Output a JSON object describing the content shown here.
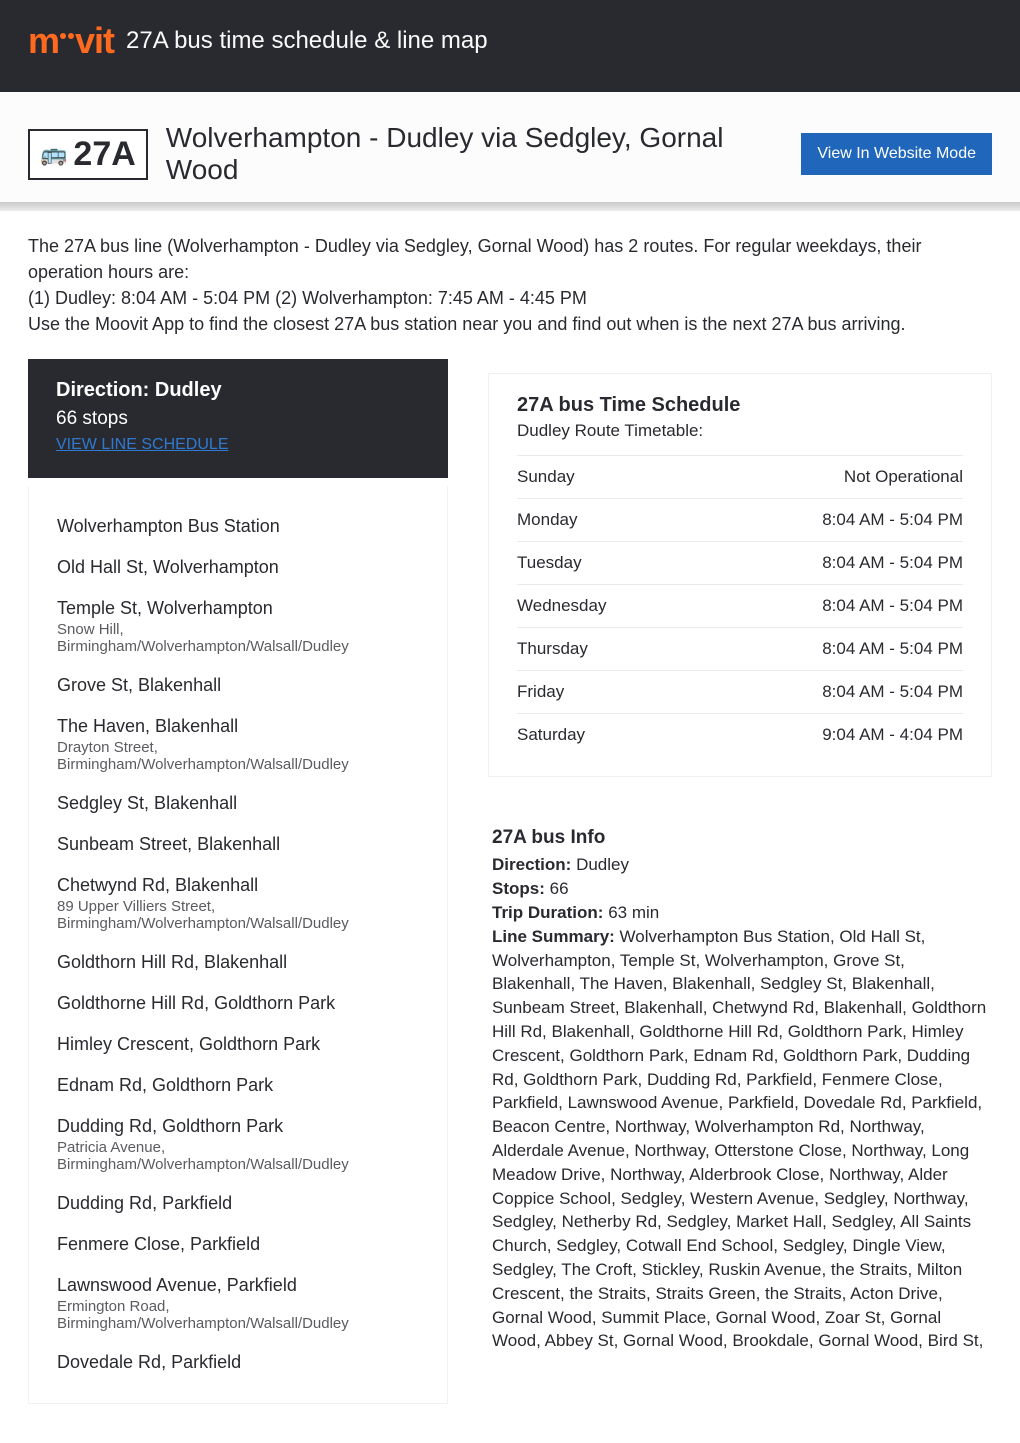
{
  "brand": "moovit",
  "header_title": "27A bus time schedule & line map",
  "route_badge": "27A",
  "route_name": "Wolverhampton - Dudley via Sedgley, Gornal Wood",
  "website_mode_btn": "View In Website Mode",
  "intro": "The 27A bus line (Wolverhampton - Dudley via Sedgley, Gornal Wood) has 2 routes. For regular weekdays, their operation hours are:\n(1) Dudley: 8:04 AM - 5:04 PM (2) Wolverhampton: 7:45 AM - 4:45 PM\nUse the Moovit App to find the closest 27A bus station near you and find out when is the next 27A bus arriving.",
  "direction_card": {
    "title": "Direction: Dudley",
    "subtitle": "66 stops",
    "link": "VIEW LINE SCHEDULE"
  },
  "stops": [
    {
      "name": "Wolverhampton Bus Station",
      "addr": ""
    },
    {
      "name": "Old Hall St, Wolverhampton",
      "addr": ""
    },
    {
      "name": "Temple St, Wolverhampton",
      "addr": "Snow Hill, Birmingham/Wolverhampton/Walsall/Dudley"
    },
    {
      "name": "Grove St, Blakenhall",
      "addr": ""
    },
    {
      "name": "The Haven, Blakenhall",
      "addr": "Drayton Street, Birmingham/Wolverhampton/Walsall/Dudley"
    },
    {
      "name": "Sedgley St, Blakenhall",
      "addr": ""
    },
    {
      "name": "Sunbeam Street, Blakenhall",
      "addr": ""
    },
    {
      "name": "Chetwynd Rd, Blakenhall",
      "addr": "89 Upper Villiers Street, Birmingham/Wolverhampton/Walsall/Dudley"
    },
    {
      "name": "Goldthorn Hill Rd, Blakenhall",
      "addr": ""
    },
    {
      "name": "Goldthorne Hill Rd, Goldthorn Park",
      "addr": ""
    },
    {
      "name": "Himley Crescent, Goldthorn Park",
      "addr": ""
    },
    {
      "name": "Ednam Rd, Goldthorn Park",
      "addr": ""
    },
    {
      "name": "Dudding Rd, Goldthorn Park",
      "addr": "Patricia Avenue, Birmingham/Wolverhampton/Walsall/Dudley"
    },
    {
      "name": "Dudding Rd, Parkfield",
      "addr": ""
    },
    {
      "name": "Fenmere Close, Parkfield",
      "addr": ""
    },
    {
      "name": "Lawnswood Avenue, Parkfield",
      "addr": "Ermington Road, Birmingham/Wolverhampton/Walsall/Dudley"
    },
    {
      "name": "Dovedale Rd, Parkfield",
      "addr": ""
    }
  ],
  "schedule": {
    "title": "27A bus Time Schedule",
    "subtitle": "Dudley Route Timetable:",
    "rows": [
      {
        "day": "Sunday",
        "time": "Not Operational"
      },
      {
        "day": "Monday",
        "time": "8:04 AM - 5:04 PM"
      },
      {
        "day": "Tuesday",
        "time": "8:04 AM - 5:04 PM"
      },
      {
        "day": "Wednesday",
        "time": "8:04 AM - 5:04 PM"
      },
      {
        "day": "Thursday",
        "time": "8:04 AM - 5:04 PM"
      },
      {
        "day": "Friday",
        "time": "8:04 AM - 5:04 PM"
      },
      {
        "day": "Saturday",
        "time": "9:04 AM - 4:04 PM"
      }
    ]
  },
  "info": {
    "title": "27A bus Info",
    "direction_label": "Direction:",
    "direction_value": "Dudley",
    "stops_label": "Stops:",
    "stops_value": "66",
    "duration_label": "Trip Duration:",
    "duration_value": "63 min",
    "summary_label": "Line Summary:",
    "summary_value": "Wolverhampton Bus Station, Old Hall St, Wolverhampton, Temple St, Wolverhampton, Grove St, Blakenhall, The Haven, Blakenhall, Sedgley St, Blakenhall, Sunbeam Street, Blakenhall, Chetwynd Rd, Blakenhall, Goldthorn Hill Rd, Blakenhall, Goldthorne Hill Rd, Goldthorn Park, Himley Crescent, Goldthorn Park, Ednam Rd, Goldthorn Park, Dudding Rd, Goldthorn Park, Dudding Rd, Parkfield, Fenmere Close, Parkfield, Lawnswood Avenue, Parkfield, Dovedale Rd, Parkfield, Beacon Centre, Northway, Wolverhampton Rd, Northway, Alderdale Avenue, Northway, Otterstone Close, Northway, Long Meadow Drive, Northway, Alderbrook Close, Northway, Alder Coppice School, Sedgley, Western Avenue, Sedgley, Northway, Sedgley, Netherby Rd, Sedgley, Market Hall, Sedgley, All Saints Church, Sedgley, Cotwall End School, Sedgley, Dingle View, Sedgley, The Croft, Stickley, Ruskin Avenue, the Straits, Milton Crescent, the Straits, Straits Green, the Straits, Acton Drive, Gornal Wood, Summit Place, Gornal Wood, Zoar St, Gornal Wood, Abbey St, Gornal Wood, Brookdale, Gornal Wood, Bird St,"
  },
  "colors": {
    "header_bg": "#292a30",
    "accent": "#ff6a1f",
    "button_bg": "#2067bb",
    "link": "#2f7ad0"
  }
}
